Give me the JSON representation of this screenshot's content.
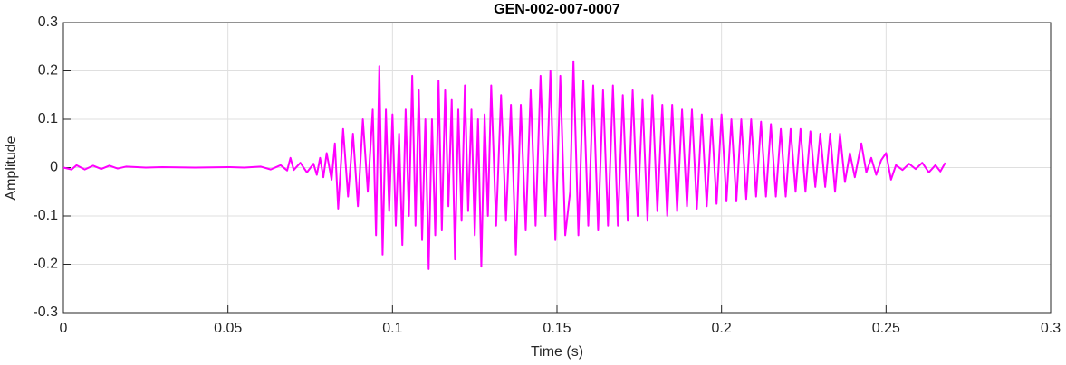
{
  "chart_data": {
    "type": "line",
    "title": "GEN-002-007-0007",
    "xlabel": "Time (s)",
    "ylabel": "Amplitude",
    "xlim": [
      0,
      0.3
    ],
    "ylim": [
      -0.3,
      0.3
    ],
    "xticks": [
      0,
      0.05,
      0.1,
      0.15,
      0.2,
      0.25,
      0.3
    ],
    "yticks": [
      -0.3,
      -0.2,
      -0.1,
      0,
      0.1,
      0.2,
      0.3
    ],
    "grid": true,
    "x": [
      0,
      0.0025,
      0.004,
      0.0065,
      0.009,
      0.0115,
      0.014,
      0.0165,
      0.019,
      0.025,
      0.03,
      0.04,
      0.05,
      0.055,
      0.06,
      0.063,
      0.066,
      0.068,
      0.069,
      0.07,
      0.072,
      0.074,
      0.076,
      0.077,
      0.078,
      0.079,
      0.08,
      0.0815,
      0.0825,
      0.0835,
      0.085,
      0.0865,
      0.088,
      0.0895,
      0.091,
      0.0925,
      0.094,
      0.095,
      0.096,
      0.097,
      0.098,
      0.099,
      0.1,
      0.101,
      0.102,
      0.103,
      0.104,
      0.105,
      0.106,
      0.107,
      0.108,
      0.109,
      0.11,
      0.111,
      0.112,
      0.113,
      0.114,
      0.115,
      0.116,
      0.117,
      0.118,
      0.119,
      0.12,
      0.121,
      0.122,
      0.123,
      0.124,
      0.125,
      0.126,
      0.127,
      0.128,
      0.129,
      0.13,
      0.1315,
      0.133,
      0.1345,
      0.136,
      0.1375,
      0.139,
      0.1405,
      0.142,
      0.1435,
      0.145,
      0.1465,
      0.148,
      0.1495,
      0.151,
      0.1525,
      0.154,
      0.155,
      0.1565,
      0.158,
      0.1595,
      0.161,
      0.1625,
      0.164,
      0.1655,
      0.167,
      0.1685,
      0.17,
      0.1715,
      0.173,
      0.1745,
      0.176,
      0.1775,
      0.179,
      0.1805,
      0.182,
      0.1835,
      0.185,
      0.1865,
      0.188,
      0.1895,
      0.191,
      0.1925,
      0.194,
      0.1955,
      0.197,
      0.1985,
      0.2,
      0.2015,
      0.203,
      0.2045,
      0.206,
      0.2075,
      0.209,
      0.2105,
      0.212,
      0.2135,
      0.215,
      0.2165,
      0.218,
      0.2195,
      0.221,
      0.2225,
      0.224,
      0.2255,
      0.227,
      0.2285,
      0.23,
      0.2315,
      0.233,
      0.2345,
      0.236,
      0.2375,
      0.239,
      0.2405,
      0.2425,
      0.244,
      0.2455,
      0.247,
      0.2485,
      0.25,
      0.2515,
      0.253,
      0.255,
      0.257,
      0.259,
      0.261,
      0.263,
      0.265,
      0.2665,
      0.268
    ],
    "series": [
      {
        "color": "#ff00ff",
        "values": [
          0,
          -0.004,
          0.005,
          -0.004,
          0.004,
          -0.003,
          0.004,
          -0.002,
          0.002,
          0,
          0.001,
          0,
          0.001,
          0,
          0.002,
          -0.004,
          0.005,
          -0.006,
          0.02,
          -0.005,
          0.01,
          -0.01,
          0.008,
          -0.015,
          0.02,
          -0.02,
          0.03,
          -0.025,
          0.05,
          -0.085,
          0.08,
          -0.06,
          0.07,
          -0.08,
          0.1,
          -0.05,
          0.12,
          -0.14,
          0.21,
          -0.18,
          0.12,
          -0.09,
          0.11,
          -0.12,
          0.07,
          -0.16,
          0.12,
          -0.1,
          0.19,
          -0.12,
          0.16,
          -0.15,
          0.1,
          -0.21,
          0.1,
          -0.14,
          0.18,
          -0.13,
          0.16,
          -0.08,
          0.14,
          -0.19,
          0.12,
          -0.11,
          0.17,
          -0.09,
          0.12,
          -0.14,
          0.1,
          -0.205,
          0.11,
          -0.1,
          0.17,
          -0.12,
          0.15,
          -0.11,
          0.13,
          -0.18,
          0.13,
          -0.13,
          0.16,
          -0.12,
          0.19,
          -0.1,
          0.2,
          -0.15,
          0.19,
          -0.14,
          -0.05,
          0.22,
          -0.14,
          0.18,
          -0.12,
          0.17,
          -0.13,
          0.16,
          -0.12,
          0.17,
          -0.12,
          0.15,
          -0.11,
          0.16,
          -0.1,
          0.14,
          -0.11,
          0.15,
          -0.09,
          0.13,
          -0.1,
          0.13,
          -0.09,
          0.12,
          -0.08,
          0.12,
          -0.085,
          0.11,
          -0.08,
          0.1,
          -0.075,
          0.11,
          -0.07,
          0.1,
          -0.07,
          0.1,
          -0.065,
          0.1,
          -0.06,
          0.095,
          -0.06,
          0.09,
          -0.06,
          0.08,
          -0.06,
          0.08,
          -0.05,
          0.08,
          -0.05,
          0.075,
          -0.04,
          0.07,
          -0.04,
          0.07,
          -0.05,
          0.07,
          -0.03,
          0.03,
          -0.02,
          0.05,
          -0.01,
          0.02,
          -0.015,
          0.015,
          0.03,
          -0.025,
          0.005,
          -0.005,
          0.008,
          -0.003,
          0.01,
          -0.01,
          0.005,
          -0.008,
          0.01
        ]
      }
    ]
  }
}
